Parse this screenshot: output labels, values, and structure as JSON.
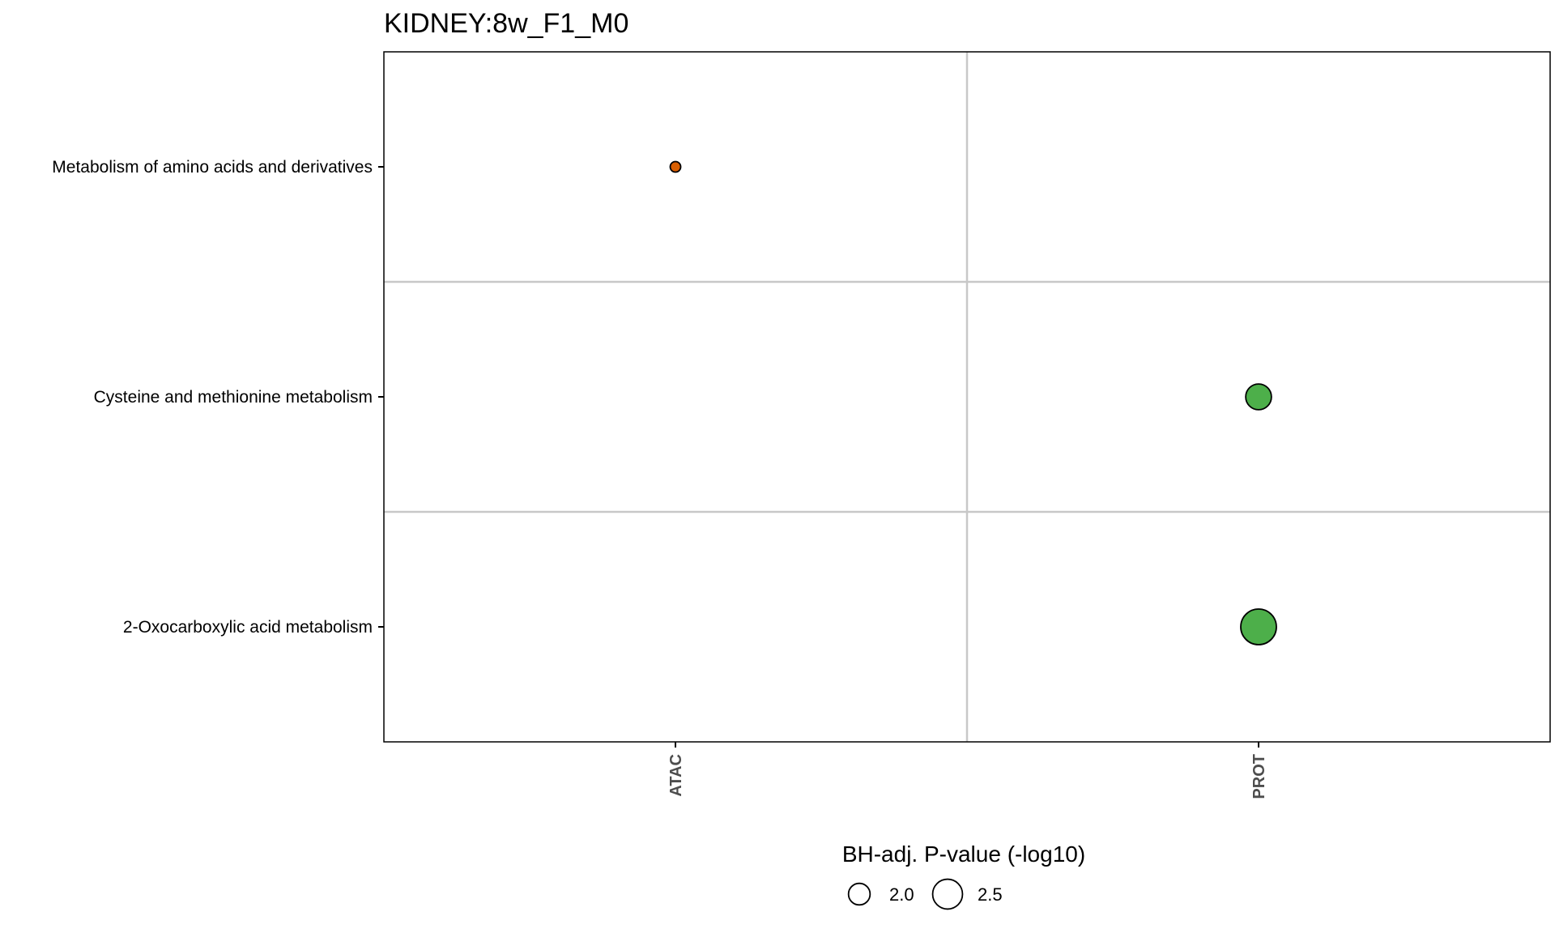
{
  "chart_data": {
    "type": "scatter",
    "title": "KIDNEY:8w_F1_M0",
    "x_categories": [
      "ATAC",
      "PROT"
    ],
    "y_categories": [
      "Metabolism of amino acids and derivatives",
      "Cysteine and methionine metabolism",
      "2-Oxocarboxylic acid metabolism"
    ],
    "points": [
      {
        "x": "ATAC",
        "y": "Metabolism of amino acids and derivatives",
        "neg_log10_padj": 1.33,
        "color": "#d95f02"
      },
      {
        "x": "PROT",
        "y": "Cysteine and methionine metabolism",
        "neg_log10_padj": 2.25,
        "color": "#4daf4a"
      },
      {
        "x": "PROT",
        "y": "2-Oxocarboxylic acid metabolism",
        "neg_log10_padj": 2.85,
        "color": "#4daf4a"
      }
    ],
    "size_legend": {
      "title": "BH-adj. P-value (-log10)",
      "entries": [
        {
          "label": "2.0",
          "value": 2.0
        },
        {
          "label": "2.5",
          "value": 2.5
        }
      ],
      "position": "bottom"
    },
    "grid": true,
    "colors": {
      "grid": "#c8c8c8",
      "axis": "#000000",
      "tick_text": "#4d4d4d"
    }
  }
}
